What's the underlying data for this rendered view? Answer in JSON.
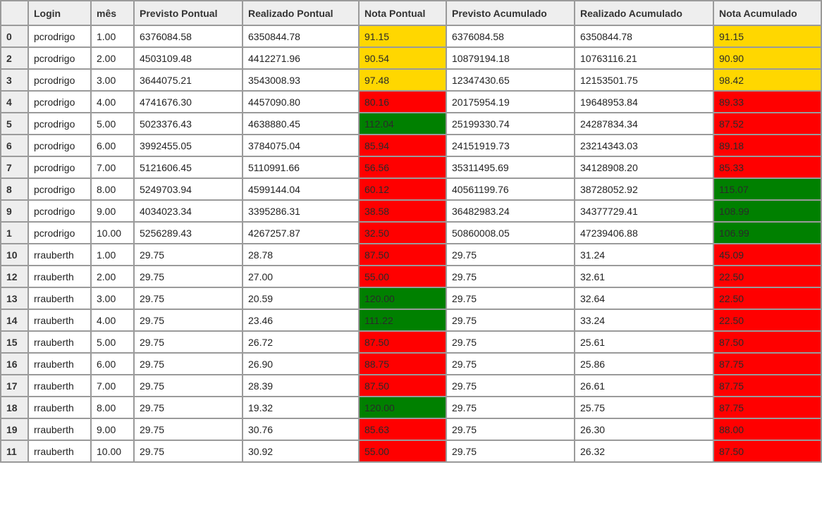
{
  "colors": {
    "yellow": "#ffd700",
    "red": "#ff0000",
    "green": "#008000"
  },
  "columns": [
    "",
    "Login",
    "mês",
    "Previsto Pontual",
    "Realizado Pontual",
    "Nota Pontual",
    "Previsto Acumulado",
    "Realizado Acumulado",
    "Nota Acumulado"
  ],
  "rows": [
    {
      "idx": "0",
      "login": "pcrodrigo",
      "mes": "1.00",
      "prev_p": "6376084.58",
      "real_p": "6350844.78",
      "nota_p": "91.15",
      "nota_p_color": "yellow",
      "prev_a": "6376084.58",
      "real_a": "6350844.78",
      "nota_a": "91.15",
      "nota_a_color": "yellow"
    },
    {
      "idx": "2",
      "login": "pcrodrigo",
      "mes": "2.00",
      "prev_p": "4503109.48",
      "real_p": "4412271.96",
      "nota_p": "90.54",
      "nota_p_color": "yellow",
      "prev_a": "10879194.18",
      "real_a": "10763116.21",
      "nota_a": "90.90",
      "nota_a_color": "yellow"
    },
    {
      "idx": "3",
      "login": "pcrodrigo",
      "mes": "3.00",
      "prev_p": "3644075.21",
      "real_p": "3543008.93",
      "nota_p": "97.48",
      "nota_p_color": "yellow",
      "prev_a": "12347430.65",
      "real_a": "12153501.75",
      "nota_a": "98.42",
      "nota_a_color": "yellow"
    },
    {
      "idx": "4",
      "login": "pcrodrigo",
      "mes": "4.00",
      "prev_p": "4741676.30",
      "real_p": "4457090.80",
      "nota_p": "80.16",
      "nota_p_color": "red",
      "prev_a": "20175954.19",
      "real_a": "19648953.84",
      "nota_a": "89.33",
      "nota_a_color": "red"
    },
    {
      "idx": "5",
      "login": "pcrodrigo",
      "mes": "5.00",
      "prev_p": "5023376.43",
      "real_p": "4638880.45",
      "nota_p": "112.04",
      "nota_p_color": "green",
      "prev_a": "25199330.74",
      "real_a": "24287834.34",
      "nota_a": "87.52",
      "nota_a_color": "red"
    },
    {
      "idx": "6",
      "login": "pcrodrigo",
      "mes": "6.00",
      "prev_p": "3992455.05",
      "real_p": "3784075.04",
      "nota_p": "85.94",
      "nota_p_color": "red",
      "prev_a": "24151919.73",
      "real_a": "23214343.03",
      "nota_a": "89.18",
      "nota_a_color": "red"
    },
    {
      "idx": "7",
      "login": "pcrodrigo",
      "mes": "7.00",
      "prev_p": "5121606.45",
      "real_p": "5110991.66",
      "nota_p": "56.56",
      "nota_p_color": "red",
      "prev_a": "35311495.69",
      "real_a": "34128908.20",
      "nota_a": "85.33",
      "nota_a_color": "red"
    },
    {
      "idx": "8",
      "login": "pcrodrigo",
      "mes": "8.00",
      "prev_p": "5249703.94",
      "real_p": "4599144.04",
      "nota_p": "60.12",
      "nota_p_color": "red",
      "prev_a": "40561199.76",
      "real_a": "38728052.92",
      "nota_a": "115.07",
      "nota_a_color": "green"
    },
    {
      "idx": "9",
      "login": "pcrodrigo",
      "mes": "9.00",
      "prev_p": "4034023.34",
      "real_p": "3395286.31",
      "nota_p": "38.58",
      "nota_p_color": "red",
      "prev_a": "36482983.24",
      "real_a": "34377729.41",
      "nota_a": "108.99",
      "nota_a_color": "green"
    },
    {
      "idx": "1",
      "login": "pcrodrigo",
      "mes": "10.00",
      "prev_p": "5256289.43",
      "real_p": "4267257.87",
      "nota_p": "32.50",
      "nota_p_color": "red",
      "prev_a": "50860008.05",
      "real_a": "47239406.88",
      "nota_a": "106.99",
      "nota_a_color": "green"
    },
    {
      "idx": "10",
      "login": "rrauberth",
      "mes": "1.00",
      "prev_p": "29.75",
      "real_p": "28.78",
      "nota_p": "87.50",
      "nota_p_color": "red",
      "prev_a": "29.75",
      "real_a": "31.24",
      "nota_a": "45.09",
      "nota_a_color": "red"
    },
    {
      "idx": "12",
      "login": "rrauberth",
      "mes": "2.00",
      "prev_p": "29.75",
      "real_p": "27.00",
      "nota_p": "55.00",
      "nota_p_color": "red",
      "prev_a": "29.75",
      "real_a": "32.61",
      "nota_a": "22.50",
      "nota_a_color": "red"
    },
    {
      "idx": "13",
      "login": "rrauberth",
      "mes": "3.00",
      "prev_p": "29.75",
      "real_p": "20.59",
      "nota_p": "120.00",
      "nota_p_color": "green",
      "prev_a": "29.75",
      "real_a": "32.64",
      "nota_a": "22.50",
      "nota_a_color": "red"
    },
    {
      "idx": "14",
      "login": "rrauberth",
      "mes": "4.00",
      "prev_p": "29.75",
      "real_p": "23.46",
      "nota_p": "111.22",
      "nota_p_color": "green",
      "prev_a": "29.75",
      "real_a": "33.24",
      "nota_a": "22.50",
      "nota_a_color": "red"
    },
    {
      "idx": "15",
      "login": "rrauberth",
      "mes": "5.00",
      "prev_p": "29.75",
      "real_p": "26.72",
      "nota_p": "87.50",
      "nota_p_color": "red",
      "prev_a": "29.75",
      "real_a": "25.61",
      "nota_a": "87.50",
      "nota_a_color": "red"
    },
    {
      "idx": "16",
      "login": "rrauberth",
      "mes": "6.00",
      "prev_p": "29.75",
      "real_p": "26.90",
      "nota_p": "88.75",
      "nota_p_color": "red",
      "prev_a": "29.75",
      "real_a": "25.86",
      "nota_a": "87.75",
      "nota_a_color": "red"
    },
    {
      "idx": "17",
      "login": "rrauberth",
      "mes": "7.00",
      "prev_p": "29.75",
      "real_p": "28.39",
      "nota_p": "87.50",
      "nota_p_color": "red",
      "prev_a": "29.75",
      "real_a": "26.61",
      "nota_a": "87.75",
      "nota_a_color": "red"
    },
    {
      "idx": "18",
      "login": "rrauberth",
      "mes": "8.00",
      "prev_p": "29.75",
      "real_p": "19.32",
      "nota_p": "120.00",
      "nota_p_color": "green",
      "prev_a": "29.75",
      "real_a": "25.75",
      "nota_a": "87.75",
      "nota_a_color": "red"
    },
    {
      "idx": "19",
      "login": "rrauberth",
      "mes": "9.00",
      "prev_p": "29.75",
      "real_p": "30.76",
      "nota_p": "85.63",
      "nota_p_color": "red",
      "prev_a": "29.75",
      "real_a": "26.30",
      "nota_a": "88.00",
      "nota_a_color": "red"
    },
    {
      "idx": "11",
      "login": "rrauberth",
      "mes": "10.00",
      "prev_p": "29.75",
      "real_p": "30.92",
      "nota_p": "55.00",
      "nota_p_color": "red",
      "prev_a": "29.75",
      "real_a": "26.32",
      "nota_a": "87.50",
      "nota_a_color": "red"
    }
  ]
}
